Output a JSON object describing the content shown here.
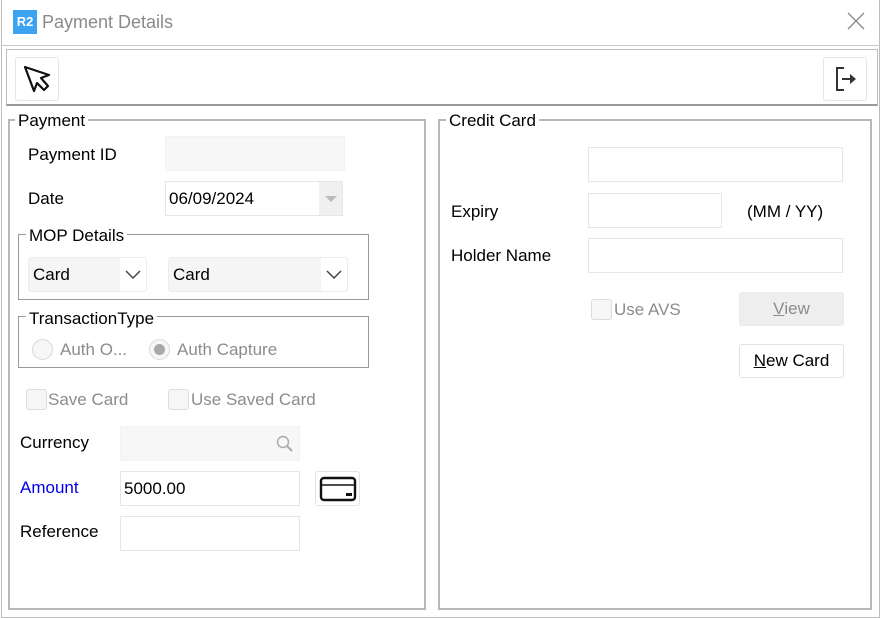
{
  "window": {
    "title": "Payment Details",
    "app_icon_text": "R2",
    "accent": "#3ba3f2"
  },
  "toolbar": {
    "select_icon": "cursor-arrow-icon",
    "exit_icon": "exit-icon"
  },
  "payment": {
    "legend": "Payment",
    "payment_id_label": "Payment ID",
    "payment_id_value": "",
    "date_label": "Date",
    "date_value": "06/09/2024",
    "mop": {
      "legend": "MOP Details",
      "method": "Card",
      "type": "Card"
    },
    "transaction": {
      "legend": "TransactionType",
      "options": [
        {
          "label": "Auth O...",
          "checked": false
        },
        {
          "label": "Auth Capture",
          "checked": true
        }
      ]
    },
    "save_card": "Save Card",
    "use_saved_card": "Use Saved Card",
    "currency_label": "Currency",
    "currency_value": "",
    "amount_label": "Amount",
    "amount_value": "5000.00",
    "amount_color": "#0000ee",
    "reference_label": "Reference",
    "reference_value": ""
  },
  "credit_card": {
    "legend": "Credit Card",
    "number_value": "",
    "expiry_label": "Expiry",
    "expiry_value": "",
    "expiry_hint": "(MM / YY)",
    "holder_label": "Holder Name",
    "holder_value": "",
    "use_avs": "Use AVS",
    "view_mnemonic": "V",
    "view_rest": "iew",
    "new_card_mnemonic": "N",
    "new_card_rest": "ew Card"
  }
}
